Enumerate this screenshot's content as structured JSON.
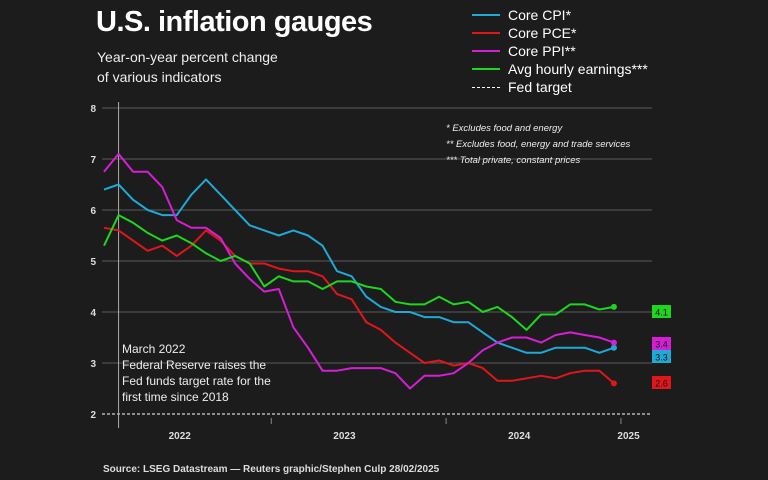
{
  "title": "U.S. inflation gauges",
  "subtitle_lines": [
    "Year-on-year percent change",
    "of various indicators"
  ],
  "notes": [
    "* Excludes food and energy",
    "** Excludes food, energy and trade services",
    "*** Total private, constant prices"
  ],
  "annotation_lines": [
    "March 2022",
    "Federal Reserve raises the",
    "Fed funds target rate for the",
    "first time since 2018"
  ],
  "source": "Source: LSEG Datastream — Reuters graphic/Stephen Culp 28/02/2025",
  "chart_data": {
    "type": "line",
    "x_start": "2022-02",
    "x_end": "2025-01",
    "x_frequency": "monthly",
    "xtick_labels": [
      "2022",
      "2023",
      "2024",
      "2025"
    ],
    "ylim": [
      2,
      8
    ],
    "yticks": [
      2,
      3,
      4,
      5,
      6,
      7,
      8
    ],
    "grid": true,
    "legend_position": "top-right",
    "reference_line": {
      "name": "Fed target",
      "value": 2,
      "style": "dashed",
      "color": "#ffffff"
    },
    "event_marker": {
      "date": "2022-03"
    },
    "series": [
      {
        "name": "Core CPI*",
        "color": "#1fa9d6",
        "end_label": "3.3",
        "values": [
          6.4,
          6.5,
          6.2,
          6.0,
          5.9,
          5.9,
          6.3,
          6.6,
          6.3,
          6.0,
          5.7,
          5.6,
          5.5,
          5.6,
          5.5,
          5.3,
          4.8,
          4.7,
          4.3,
          4.1,
          4.0,
          4.0,
          3.9,
          3.9,
          3.8,
          3.8,
          3.6,
          3.4,
          3.3,
          3.2,
          3.2,
          3.3,
          3.3,
          3.3,
          3.2,
          3.3
        ]
      },
      {
        "name": "Core PCE*",
        "color": "#e0161b",
        "end_label": "2.6",
        "values": [
          5.65,
          5.6,
          5.4,
          5.2,
          5.3,
          5.1,
          5.3,
          5.6,
          5.4,
          5.1,
          4.95,
          4.95,
          4.85,
          4.8,
          4.8,
          4.7,
          4.35,
          4.25,
          3.8,
          3.65,
          3.4,
          3.2,
          3.0,
          3.05,
          2.95,
          3.0,
          2.9,
          2.65,
          2.65,
          2.7,
          2.75,
          2.7,
          2.8,
          2.85,
          2.85,
          2.6
        ]
      },
      {
        "name": "Core PPI**",
        "color": "#d41fd4",
        "end_label": "3.4",
        "values": [
          6.75,
          7.1,
          6.75,
          6.75,
          6.45,
          5.8,
          5.65,
          5.65,
          5.45,
          4.95,
          4.65,
          4.4,
          4.45,
          3.7,
          3.3,
          2.85,
          2.85,
          2.9,
          2.9,
          2.9,
          2.8,
          2.5,
          2.75,
          2.75,
          2.8,
          3.0,
          3.25,
          3.4,
          3.5,
          3.5,
          3.4,
          3.55,
          3.6,
          3.55,
          3.5,
          3.4
        ]
      },
      {
        "name": "Avg hourly earnings***",
        "color": "#1ed61e",
        "end_label": "4.1",
        "values": [
          5.3,
          5.9,
          5.75,
          5.55,
          5.4,
          5.5,
          5.35,
          5.15,
          5.0,
          5.1,
          4.95,
          4.5,
          4.7,
          4.6,
          4.6,
          4.45,
          4.6,
          4.6,
          4.5,
          4.45,
          4.2,
          4.15,
          4.15,
          4.3,
          4.15,
          4.2,
          4.0,
          4.1,
          3.9,
          3.65,
          3.95,
          3.95,
          4.15,
          4.15,
          4.05,
          4.1
        ]
      }
    ]
  }
}
